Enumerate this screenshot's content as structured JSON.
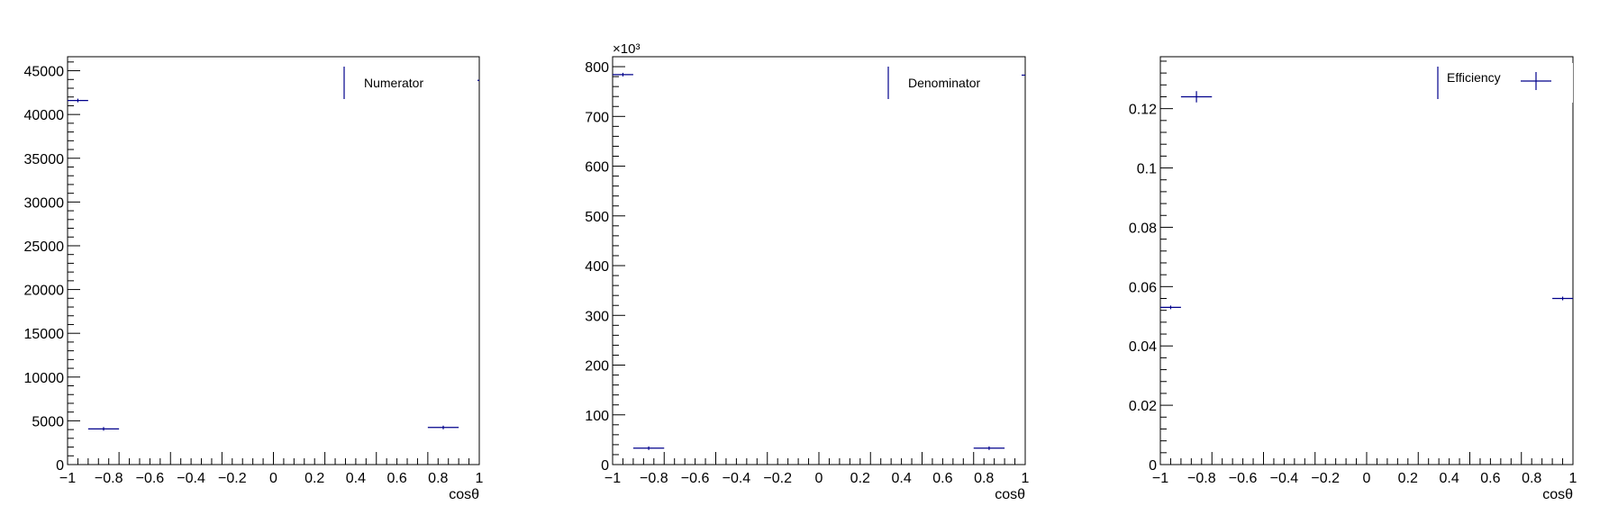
{
  "chart_data": [
    {
      "type": "scatter",
      "title": "",
      "xlabel": "cosθ",
      "ylabel": "",
      "xlim": [
        -1,
        1
      ],
      "ylim": [
        0,
        46600
      ],
      "y_exponent": "",
      "x_ticks": [
        "−1",
        "−0.8",
        "−0.6",
        "−0.4",
        "−0.2",
        "0",
        "0.2",
        "0.4",
        "0.6",
        "0.8",
        "1"
      ],
      "y_ticks": [
        "0",
        "5000",
        "10000",
        "15000",
        "20000",
        "25000",
        "30000",
        "35000",
        "40000",
        "45000"
      ],
      "legend": "Numerator",
      "legend_position": "top-right",
      "series_color": "#00008b",
      "points": [
        {
          "x": -0.95,
          "xerr": 0.05,
          "y": 41600,
          "yerr": 204
        },
        {
          "x": -0.825,
          "xerr": 0.075,
          "y": 4080,
          "yerr": 64
        },
        {
          "x": 0.825,
          "xerr": 0.075,
          "y": 4240,
          "yerr": 65
        },
        {
          "x": 0.95,
          "xerr": 0.05,
          "y": 43900,
          "yerr": 210
        }
      ]
    },
    {
      "type": "scatter",
      "title": "",
      "xlabel": "cosθ",
      "ylabel": "",
      "xlim": [
        -1,
        1
      ],
      "ylim": [
        0,
        820
      ],
      "y_exponent": "×10³",
      "x_ticks": [
        "−1",
        "−0.8",
        "−0.6",
        "−0.4",
        "−0.2",
        "0",
        "0.2",
        "0.4",
        "0.6",
        "0.8",
        "1"
      ],
      "y_ticks": [
        "0",
        "100",
        "200",
        "300",
        "400",
        "500",
        "600",
        "700",
        "800"
      ],
      "legend": "Denominator",
      "legend_position": "top-right",
      "series_color": "#00008b",
      "points": [
        {
          "x": -0.95,
          "xerr": 0.05,
          "y": 784,
          "yerr": 0.9
        },
        {
          "x": -0.825,
          "xerr": 0.075,
          "y": 33,
          "yerr": 0.2
        },
        {
          "x": 0.825,
          "xerr": 0.075,
          "y": 33,
          "yerr": 0.2
        },
        {
          "x": 0.95,
          "xerr": 0.05,
          "y": 783,
          "yerr": 0.9
        }
      ]
    },
    {
      "type": "scatter",
      "title": "",
      "xlabel": "cosθ",
      "ylabel": "",
      "xlim": [
        -1,
        1
      ],
      "ylim": [
        0,
        0.1375
      ],
      "y_exponent": "",
      "x_ticks": [
        "−1",
        "−0.8",
        "−0.6",
        "−0.4",
        "−0.2",
        "0",
        "0.2",
        "0.4",
        "0.6",
        "0.8",
        "1"
      ],
      "y_ticks": [
        "0",
        "0.02",
        "0.04",
        "0.06",
        "0.08",
        "0.1",
        "0.12"
      ],
      "legend": "Efficiency",
      "legend_position": "top-right",
      "series_color": "#00008b",
      "points": [
        {
          "x": -0.95,
          "xerr": 0.05,
          "y": 0.053,
          "yerr": 0.0003
        },
        {
          "x": -0.825,
          "xerr": 0.075,
          "y": 0.124,
          "yerr": 0.0019
        },
        {
          "x": 0.95,
          "xerr": 0.05,
          "y": 0.056,
          "yerr": 0.0003
        }
      ]
    }
  ]
}
